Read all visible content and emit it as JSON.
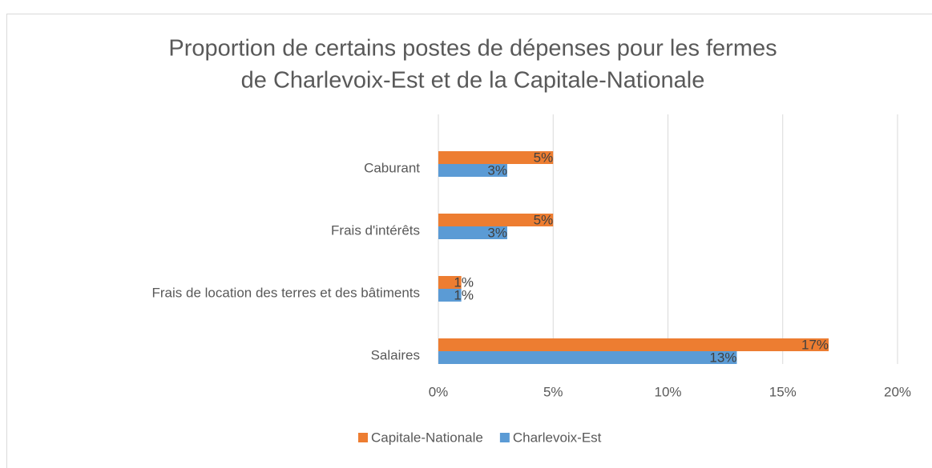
{
  "chart_data": {
    "type": "hbar",
    "title": [
      "Proportion de certains postes de dépenses pour les fermes",
      "de Charlevoix-Est et de la Capitale-Nationale"
    ],
    "categories": [
      "Caburant",
      "Frais d'intérêts",
      "Frais de location des terres et des bâtiments",
      "Salaires"
    ],
    "series": [
      {
        "name": "Capitale-Nationale",
        "color": "#ed7d31",
        "values": [
          5,
          5,
          1,
          17
        ],
        "value_labels": [
          "5%",
          "5%",
          "1%",
          "17%"
        ]
      },
      {
        "name": "Charlevoix-Est",
        "color": "#5b9bd5",
        "values": [
          3,
          3,
          1,
          13
        ],
        "value_labels": [
          "3%",
          "3%",
          "1%",
          "13%"
        ]
      }
    ],
    "xlim": [
      0,
      20
    ],
    "xticks": [
      {
        "value": 0,
        "label": "0%"
      },
      {
        "value": 5,
        "label": "5%"
      },
      {
        "value": 10,
        "label": "10%"
      },
      {
        "value": 15,
        "label": "15%"
      },
      {
        "value": 20,
        "label": "20%"
      }
    ],
    "grid": true,
    "legend": "bottom"
  }
}
